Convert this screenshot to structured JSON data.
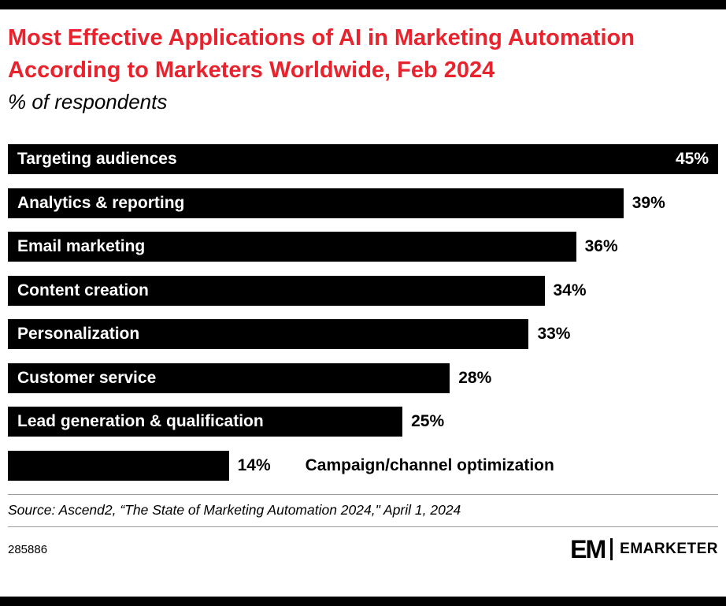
{
  "page": {
    "title": "Most Effective Applications of AI in Marketing Automation According to Marketers Worldwide, Feb 2024",
    "subtitle": "% of respondents",
    "source": "Source: Ascend2, “The State of Marketing Automation 2024,\" April 1, 2024",
    "footer_id": "285886",
    "brand": {
      "logo_text": "EM",
      "brand_name": "EMARKETER"
    }
  },
  "colors": {
    "accent_red": "#e8232d",
    "bar": "#000000",
    "bar_text": "#ffffff",
    "value_text": "#000000"
  },
  "chart_data": {
    "type": "bar",
    "orientation": "horizontal",
    "title": "Most Effective Applications of AI in Marketing Automation According to Marketers Worldwide, Feb 2024",
    "xlabel": "% of respondents",
    "xlim": [
      0,
      45
    ],
    "value_suffix": "%",
    "grid": false,
    "categories": [
      "Targeting audiences",
      "Analytics & reporting",
      "Email marketing",
      "Content creation",
      "Personalization",
      "Customer service",
      "Lead generation & qualification",
      "Campaign/channel optimization"
    ],
    "values": [
      45,
      39,
      36,
      34,
      33,
      28,
      25,
      14
    ],
    "rows": [
      {
        "label": "Targeting audiences",
        "value": 45,
        "label_inside": true,
        "value_inside": true
      },
      {
        "label": "Analytics & reporting",
        "value": 39,
        "label_inside": true,
        "value_inside": false
      },
      {
        "label": "Email marketing",
        "value": 36,
        "label_inside": true,
        "value_inside": false
      },
      {
        "label": "Content creation",
        "value": 34,
        "label_inside": true,
        "value_inside": false
      },
      {
        "label": "Personalization",
        "value": 33,
        "label_inside": true,
        "value_inside": false
      },
      {
        "label": "Customer service",
        "value": 28,
        "label_inside": true,
        "value_inside": false
      },
      {
        "label": "Lead generation & qualification",
        "value": 25,
        "label_inside": true,
        "value_inside": false
      },
      {
        "label": "Campaign/channel optimization",
        "value": 14,
        "label_inside": false,
        "value_inside": false
      }
    ]
  }
}
